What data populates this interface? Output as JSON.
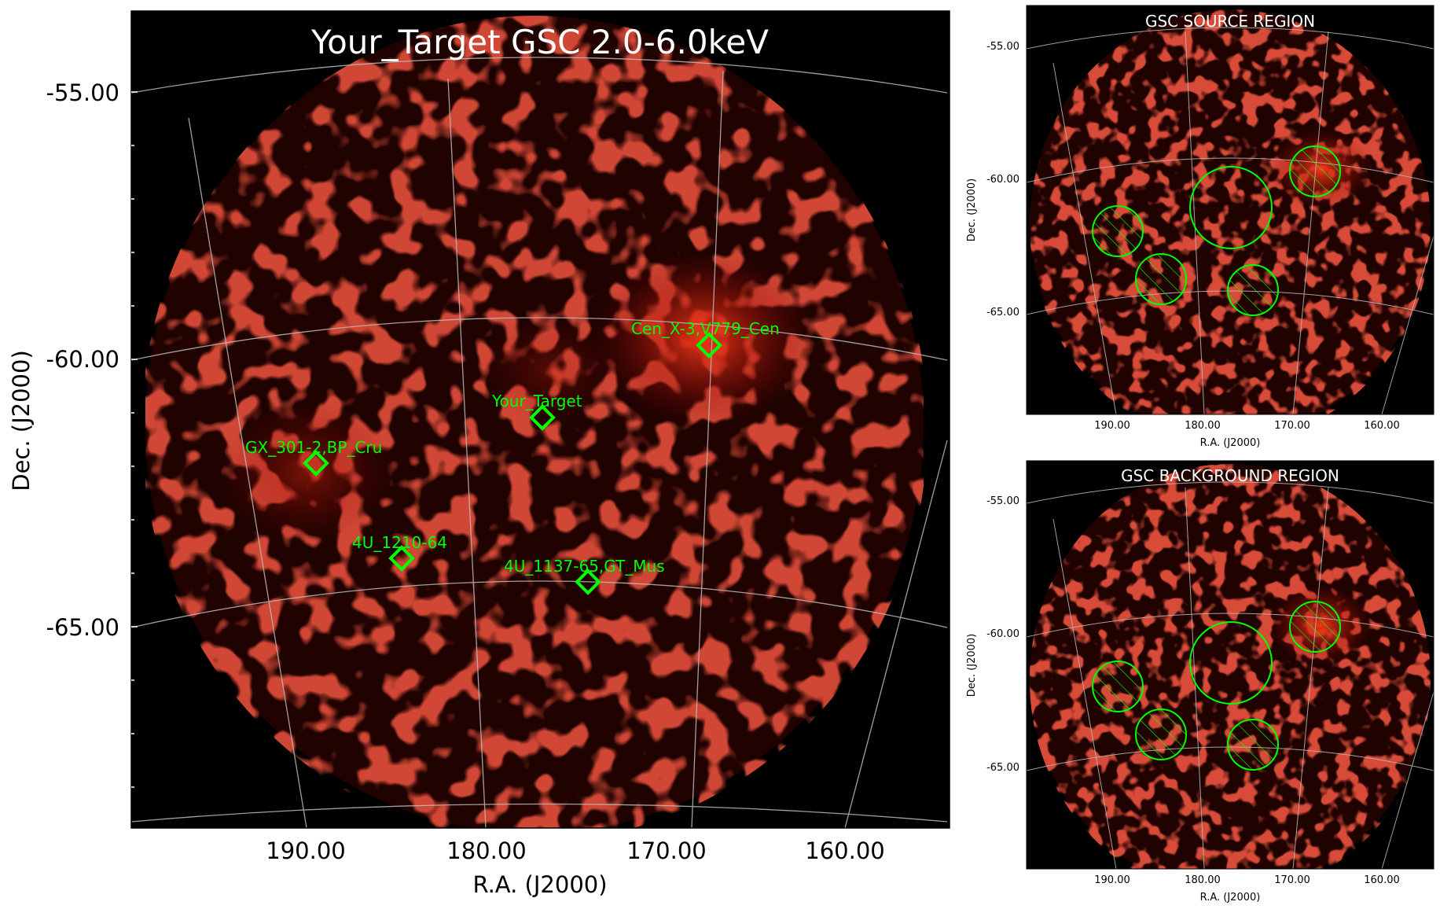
{
  "main_panel": {
    "title": "Your_Target GSC 2.0-6.0keV",
    "xlabel": "R.A. (J2000)",
    "ylabel": "Dec. (J2000)",
    "xticks": [
      "190.00",
      "180.00",
      "170.00",
      "160.00"
    ],
    "yticks": [
      "-55.00",
      "-60.00",
      "-65.00"
    ],
    "sources": [
      {
        "label": "Cen_X-3,V779_Cen"
      },
      {
        "label": "Your_Target"
      },
      {
        "label": "GX_301-2,BP_Cru"
      },
      {
        "label": "4U_1210-64"
      },
      {
        "label": "4U_1137-65,GT_Mus"
      }
    ]
  },
  "source_panel": {
    "title": "GSC SOURCE REGION",
    "xlabel": "R.A. (J2000)",
    "ylabel": "Dec. (J2000)",
    "xticks": [
      "190.00",
      "180.00",
      "170.00",
      "160.00"
    ],
    "yticks": [
      "-55.00",
      "-60.00",
      "-65.00"
    ]
  },
  "background_panel": {
    "title": "GSC BACKGROUND REGION",
    "xlabel": "R.A. (J2000)",
    "ylabel": "Dec. (J2000)",
    "xticks": [
      "190.00",
      "180.00",
      "170.00",
      "160.00"
    ],
    "yticks": [
      "-55.00",
      "-60.00",
      "-65.00"
    ]
  },
  "colors": {
    "marker": "#00ff00",
    "grid": "#bbbbbb",
    "emission": "#b01a10",
    "bright_source": "#ff3a1a"
  }
}
